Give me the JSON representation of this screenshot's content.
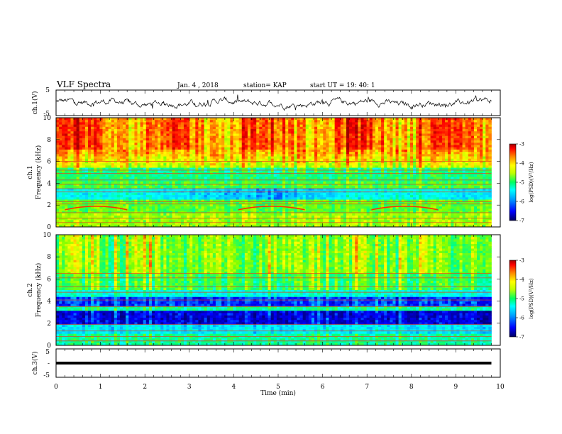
{
  "header": {
    "title": "VLF Spectra",
    "date": "Jan. 4 , 2018",
    "station": "station= KAP",
    "start": "start UT = 19: 40: 1"
  },
  "colors": {
    "trace": "#000000",
    "colormap": [
      "#000080",
      "#0000ff",
      "#00b0ff",
      "#00ffff",
      "#00ff80",
      "#80ff00",
      "#ffff00",
      "#ff8000",
      "#ff0000",
      "#a00000"
    ]
  },
  "chart_data": [
    {
      "type": "line",
      "panel": "ch1-waveform",
      "ylabel": "ch.1(V)",
      "ylim": [
        -5,
        5
      ],
      "yticks": [
        5,
        -5
      ],
      "xlim": [
        0,
        10
      ],
      "description_values": "noisy trace fluctuating around 0 V, amplitude about ±2 V, data ending near 9.8 min",
      "x_end": 9.8,
      "approx_amplitude": 2
    },
    {
      "type": "heatmap",
      "panel": "ch1-spectrogram",
      "ylabel_lines": [
        "ch.1",
        "Frequency (kHz)"
      ],
      "ylim": [
        0,
        10
      ],
      "yticks": [
        0,
        2,
        4,
        6,
        8,
        10
      ],
      "xlim": [
        0,
        10
      ],
      "x_end": 9.8,
      "colorbar": {
        "label": "log(PSD)(V²/Hz)",
        "range": [
          -7,
          -3
        ],
        "ticks": [
          -3,
          -4,
          -5,
          -6,
          -7
        ]
      },
      "bands_khz": [
        0.4,
        0.8,
        1.3,
        2.1,
        2.3,
        3.2,
        3.5,
        3.9,
        4.3,
        4.9,
        5.2,
        6.0
      ],
      "whistler_arcs": [
        {
          "start_min": 0.2,
          "end_min": 1.6,
          "freq_khz": 1.7
        },
        {
          "start_min": 4.1,
          "end_min": 5.6,
          "freq_khz": 1.7
        },
        {
          "start_min": 7.1,
          "end_min": 8.6,
          "freq_khz": 1.7
        }
      ]
    },
    {
      "type": "heatmap",
      "panel": "ch2-spectrogram",
      "ylabel_lines": [
        "ch.2",
        "Frequency (kHz)"
      ],
      "ylim": [
        0,
        10
      ],
      "yticks": [
        0,
        2,
        4,
        6,
        8,
        10
      ],
      "xlim": [
        0,
        10
      ],
      "x_end": 9.8,
      "colorbar": {
        "label": "log(PSD)(V²/Hz)",
        "range": [
          -7,
          -3
        ],
        "ticks": [
          -3,
          -4,
          -5,
          -6,
          -7
        ]
      },
      "bands_khz": [
        0.4,
        0.8,
        1.3,
        1.9,
        3.5,
        4.1,
        4.8,
        5.3,
        6.1,
        6.5
      ]
    },
    {
      "type": "line",
      "panel": "ch3-waveform",
      "ylabel": "ch.3(V)",
      "ylim": [
        -5,
        5
      ],
      "yticks": [
        5,
        0,
        -5
      ],
      "ytick_labels": [
        "5",
        "-",
        "-5"
      ],
      "xlim": [
        0,
        10
      ],
      "xticks": [
        0,
        1,
        2,
        3,
        4,
        5,
        6,
        7,
        8,
        9,
        10
      ],
      "xlabel": "Time (min)",
      "constant_value": 0,
      "x_end": 9.8
    }
  ]
}
